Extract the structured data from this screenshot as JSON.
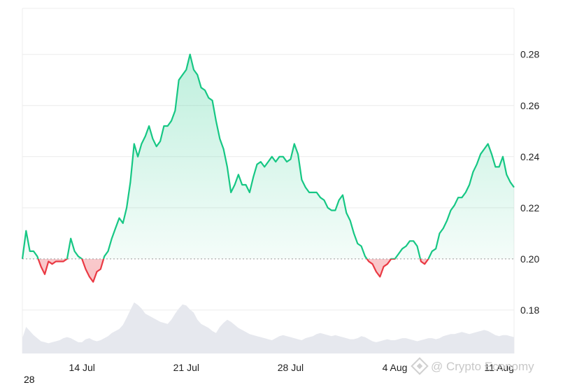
{
  "corner_label": "28",
  "watermark": {
    "text": "@ Crypto Economy",
    "icon": "binance-diamond-icon"
  },
  "colors": {
    "up": "#16c784",
    "down": "#ea3943",
    "volume": "#e6e8ee",
    "baseline": "#9a9a9a"
  },
  "chart_data": {
    "type": "area",
    "title": "",
    "xlabel": "",
    "ylabel": "",
    "baseline": 0.2,
    "ylim": [
      0.163,
      0.298
    ],
    "y_ticks": [
      "0.18",
      "0.20",
      "0.22",
      "0.24",
      "0.26",
      "0.28"
    ],
    "x_ticks": [
      "14 Jul",
      "21 Jul",
      "28 Jul",
      "4 Aug",
      "11 Aug"
    ],
    "grid": true,
    "legend": "none",
    "series": [
      {
        "dates": [
          "2025-07-10 00:00",
          "2025-07-10 06:00",
          "2025-07-10 12:00",
          "2025-07-10 18:00",
          "2025-07-11 00:00",
          "2025-07-11 06:00",
          "2025-07-11 12:00",
          "2025-07-11 18:00",
          "2025-07-12 00:00",
          "2025-07-12 06:00",
          "2025-07-12 12:00",
          "2025-07-12 18:00",
          "2025-07-13 00:00",
          "2025-07-13 06:00",
          "2025-07-13 12:00",
          "2025-07-13 18:00",
          "2025-07-14 00:00",
          "2025-07-14 06:00",
          "2025-07-14 12:00",
          "2025-07-14 18:00",
          "2025-07-15 00:00",
          "2025-07-15 06:00",
          "2025-07-15 12:00",
          "2025-07-15 18:00",
          "2025-07-16 00:00",
          "2025-07-16 06:00",
          "2025-07-16 12:00",
          "2025-07-16 18:00",
          "2025-07-17 00:00",
          "2025-07-17 06:00",
          "2025-07-17 12:00",
          "2025-07-17 18:00",
          "2025-07-18 00:00",
          "2025-07-18 06:00",
          "2025-07-18 12:00",
          "2025-07-18 18:00",
          "2025-07-19 00:00",
          "2025-07-19 06:00",
          "2025-07-19 12:00",
          "2025-07-19 18:00",
          "2025-07-20 00:00",
          "2025-07-20 06:00",
          "2025-07-20 12:00",
          "2025-07-20 18:00",
          "2025-07-21 00:00",
          "2025-07-21 06:00",
          "2025-07-21 12:00",
          "2025-07-21 18:00",
          "2025-07-22 00:00",
          "2025-07-22 06:00",
          "2025-07-22 12:00",
          "2025-07-22 18:00",
          "2025-07-23 00:00",
          "2025-07-23 06:00",
          "2025-07-23 12:00",
          "2025-07-23 18:00",
          "2025-07-24 00:00",
          "2025-07-24 06:00",
          "2025-07-24 12:00",
          "2025-07-24 18:00",
          "2025-07-25 00:00",
          "2025-07-25 06:00",
          "2025-07-25 12:00",
          "2025-07-25 18:00",
          "2025-07-26 00:00",
          "2025-07-26 06:00",
          "2025-07-26 12:00",
          "2025-07-26 18:00",
          "2025-07-27 00:00",
          "2025-07-27 06:00",
          "2025-07-27 12:00",
          "2025-07-27 18:00",
          "2025-07-28 00:00",
          "2025-07-28 06:00",
          "2025-07-28 12:00",
          "2025-07-28 18:00",
          "2025-07-29 00:00",
          "2025-07-29 06:00",
          "2025-07-29 12:00",
          "2025-07-29 18:00",
          "2025-07-30 00:00",
          "2025-07-30 06:00",
          "2025-07-30 12:00",
          "2025-07-30 18:00",
          "2025-07-31 00:00",
          "2025-07-31 06:00",
          "2025-07-31 12:00",
          "2025-07-31 18:00",
          "2025-08-01 00:00",
          "2025-08-01 06:00",
          "2025-08-01 12:00",
          "2025-08-01 18:00",
          "2025-08-02 00:00",
          "2025-08-02 06:00",
          "2025-08-02 12:00",
          "2025-08-02 18:00",
          "2025-08-03 00:00",
          "2025-08-03 06:00",
          "2025-08-03 12:00",
          "2025-08-03 18:00",
          "2025-08-04 00:00",
          "2025-08-04 06:00",
          "2025-08-04 12:00",
          "2025-08-04 18:00",
          "2025-08-05 00:00",
          "2025-08-05 06:00",
          "2025-08-05 12:00",
          "2025-08-05 18:00",
          "2025-08-06 00:00",
          "2025-08-06 06:00",
          "2025-08-06 12:00",
          "2025-08-06 18:00",
          "2025-08-07 00:00",
          "2025-08-07 06:00",
          "2025-08-07 12:00",
          "2025-08-07 18:00",
          "2025-08-08 00:00",
          "2025-08-08 06:00",
          "2025-08-08 12:00",
          "2025-08-08 18:00",
          "2025-08-09 00:00",
          "2025-08-09 06:00",
          "2025-08-09 12:00",
          "2025-08-09 18:00",
          "2025-08-10 00:00",
          "2025-08-10 06:00",
          "2025-08-10 12:00",
          "2025-08-10 18:00",
          "2025-08-11 00:00",
          "2025-08-11 06:00",
          "2025-08-11 12:00",
          "2025-08-11 18:00",
          "2025-08-12 00:00"
        ],
        "values": [
          0.2,
          0.211,
          0.203,
          0.203,
          0.201,
          0.197,
          0.194,
          0.199,
          0.198,
          0.199,
          0.199,
          0.199,
          0.2,
          0.208,
          0.203,
          0.201,
          0.2,
          0.196,
          0.193,
          0.191,
          0.195,
          0.196,
          0.201,
          0.203,
          0.208,
          0.212,
          0.216,
          0.214,
          0.22,
          0.23,
          0.245,
          0.24,
          0.245,
          0.248,
          0.252,
          0.247,
          0.244,
          0.246,
          0.252,
          0.252,
          0.254,
          0.258,
          0.27,
          0.272,
          0.274,
          0.28,
          0.274,
          0.272,
          0.267,
          0.266,
          0.263,
          0.262,
          0.254,
          0.247,
          0.243,
          0.236,
          0.226,
          0.229,
          0.233,
          0.229,
          0.229,
          0.226,
          0.232,
          0.237,
          0.238,
          0.236,
          0.238,
          0.24,
          0.238,
          0.24,
          0.24,
          0.238,
          0.239,
          0.245,
          0.241,
          0.231,
          0.228,
          0.226,
          0.226,
          0.226,
          0.224,
          0.223,
          0.22,
          0.219,
          0.219,
          0.223,
          0.225,
          0.218,
          0.215,
          0.21,
          0.206,
          0.205,
          0.201,
          0.199,
          0.198,
          0.195,
          0.193,
          0.197,
          0.198,
          0.2,
          0.2,
          0.202,
          0.204,
          0.205,
          0.207,
          0.207,
          0.205,
          0.199,
          0.198,
          0.2,
          0.203,
          0.204,
          0.21,
          0.212,
          0.215,
          0.219,
          0.221,
          0.224,
          0.224,
          0.226,
          0.229,
          0.234,
          0.237,
          0.241,
          0.243,
          0.245,
          0.241,
          0.236,
          0.236,
          0.24,
          0.233,
          0.23,
          0.228
        ],
        "volume": [
          0.3,
          0.52,
          0.44,
          0.36,
          0.3,
          0.24,
          0.22,
          0.2,
          0.22,
          0.24,
          0.26,
          0.3,
          0.32,
          0.3,
          0.26,
          0.22,
          0.22,
          0.28,
          0.3,
          0.26,
          0.24,
          0.26,
          0.3,
          0.34,
          0.4,
          0.44,
          0.48,
          0.56,
          0.7,
          0.85,
          1.0,
          0.95,
          0.88,
          0.78,
          0.74,
          0.7,
          0.66,
          0.62,
          0.6,
          0.58,
          0.66,
          0.78,
          0.88,
          0.96,
          0.94,
          0.86,
          0.8,
          0.66,
          0.58,
          0.54,
          0.5,
          0.44,
          0.4,
          0.52,
          0.6,
          0.66,
          0.62,
          0.56,
          0.5,
          0.46,
          0.42,
          0.38,
          0.36,
          0.34,
          0.32,
          0.3,
          0.28,
          0.26,
          0.3,
          0.34,
          0.36,
          0.34,
          0.32,
          0.3,
          0.28,
          0.26,
          0.3,
          0.32,
          0.34,
          0.38,
          0.4,
          0.38,
          0.36,
          0.34,
          0.36,
          0.34,
          0.32,
          0.3,
          0.28,
          0.28,
          0.3,
          0.34,
          0.32,
          0.28,
          0.24,
          0.22,
          0.24,
          0.26,
          0.28,
          0.26,
          0.26,
          0.28,
          0.3,
          0.3,
          0.28,
          0.26,
          0.24,
          0.26,
          0.28,
          0.3,
          0.3,
          0.28,
          0.3,
          0.34,
          0.36,
          0.38,
          0.38,
          0.4,
          0.42,
          0.4,
          0.38,
          0.4,
          0.42,
          0.44,
          0.46,
          0.44,
          0.4,
          0.36,
          0.34,
          0.36,
          0.36,
          0.34,
          0.32
        ]
      }
    ]
  }
}
